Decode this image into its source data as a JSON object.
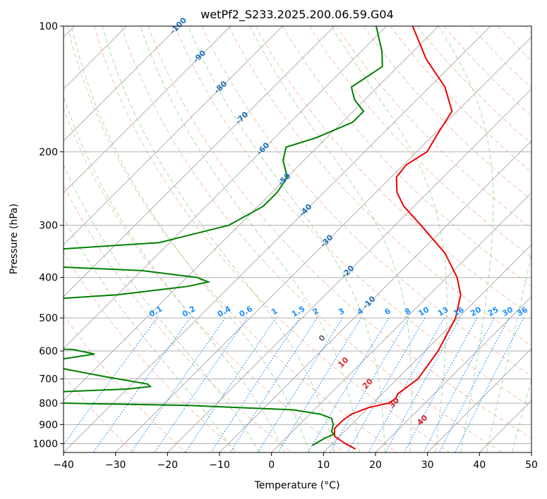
{
  "chart_data": {
    "type": "line",
    "subtype": "skew-t log-p diagram",
    "title": "wetPf2_S233.2025.200.06.59.G04",
    "xlabel": "Temperature (°C)",
    "ylabel": "Pressure (hPa)",
    "xlim": [
      -40,
      50
    ],
    "ylim": [
      1050,
      100
    ],
    "y_scale": "log",
    "x_ticks": [
      -40,
      -30,
      -20,
      -10,
      0,
      10,
      20,
      30,
      40,
      50
    ],
    "y_ticks": [
      100,
      200,
      300,
      400,
      500,
      600,
      700,
      800,
      900,
      1000
    ],
    "grid": true,
    "series": [
      {
        "color": "#ee0000",
        "points": [
          {
            "p": 1030,
            "t": 15.5
          },
          {
            "p": 1000,
            "t": 12.5
          },
          {
            "p": 960,
            "t": 9.0
          },
          {
            "p": 920,
            "t": 7.5
          },
          {
            "p": 880,
            "t": 7.5
          },
          {
            "p": 850,
            "t": 8.0
          },
          {
            "p": 820,
            "t": 10.0
          },
          {
            "p": 800,
            "t": 13.0
          },
          {
            "p": 780,
            "t": 13.5
          },
          {
            "p": 760,
            "t": 13.0
          },
          {
            "p": 700,
            "t": 14.0
          },
          {
            "p": 600,
            "t": 12.5
          },
          {
            "p": 500,
            "t": 9.5
          },
          {
            "p": 440,
            "t": 6.0
          },
          {
            "p": 400,
            "t": 2.0
          },
          {
            "p": 350,
            "t": -5.0
          },
          {
            "p": 300,
            "t": -15.0
          },
          {
            "p": 270,
            "t": -22.0
          },
          {
            "p": 250,
            "t": -26.0
          },
          {
            "p": 230,
            "t": -29.0
          },
          {
            "p": 215,
            "t": -29.5
          },
          {
            "p": 200,
            "t": -28.0
          },
          {
            "p": 180,
            "t": -29.5
          },
          {
            "p": 160,
            "t": -31.0
          },
          {
            "p": 140,
            "t": -37.0
          },
          {
            "p": 120,
            "t": -46.0
          },
          {
            "p": 100,
            "t": -55.0
          }
        ]
      },
      {
        "color": "#008000",
        "points": [
          {
            "p": 1010,
            "t": 6.5
          },
          {
            "p": 970,
            "t": 7.5
          },
          {
            "p": 950,
            "t": 8.5
          },
          {
            "p": 935,
            "t": 7.5
          },
          {
            "p": 900,
            "t": 6.5
          },
          {
            "p": 870,
            "t": 5.0
          },
          {
            "p": 850,
            "t": 2.0
          },
          {
            "p": 830,
            "t": -4.0
          },
          {
            "p": 810,
            "t": -25.0
          },
          {
            "p": 796,
            "t": -60.0
          },
          {
            "p": 760,
            "t": -62.0
          },
          {
            "p": 740,
            "t": -40.0
          },
          {
            "p": 730,
            "t": -36.0
          },
          {
            "p": 720,
            "t": -37.0
          },
          {
            "p": 690,
            "t": -47.0
          },
          {
            "p": 650,
            "t": -60.0
          },
          {
            "p": 640,
            "t": -62.0
          },
          {
            "p": 620,
            "t": -56.0
          },
          {
            "p": 610,
            "t": -53.0
          },
          {
            "p": 595,
            "t": -58.0
          },
          {
            "p": 585,
            "t": -80.0
          },
          {
            "p": 460,
            "t": -82.0
          },
          {
            "p": 440,
            "t": -60.0
          },
          {
            "p": 420,
            "t": -48.0
          },
          {
            "p": 410,
            "t": -45.0
          },
          {
            "p": 400,
            "t": -48.0
          },
          {
            "p": 385,
            "t": -60.0
          },
          {
            "p": 375,
            "t": -82.0
          },
          {
            "p": 345,
            "t": -84.0
          },
          {
            "p": 330,
            "t": -62.0
          },
          {
            "p": 300,
            "t": -52.0
          },
          {
            "p": 270,
            "t": -49.0
          },
          {
            "p": 250,
            "t": -49.0
          },
          {
            "p": 230,
            "t": -50.0
          },
          {
            "p": 210,
            "t": -54.0
          },
          {
            "p": 195,
            "t": -56.0
          },
          {
            "p": 185,
            "t": -52.0
          },
          {
            "p": 170,
            "t": -48.0
          },
          {
            "p": 160,
            "t": -48.0
          },
          {
            "p": 150,
            "t": -52.0
          },
          {
            "p": 140,
            "t": -55.0
          },
          {
            "p": 125,
            "t": -53.0
          },
          {
            "p": 115,
            "t": -56.0
          },
          {
            "p": 100,
            "t": -62.0
          }
        ]
      }
    ],
    "isotherm_labels": [
      "-100",
      "-90",
      "-80",
      "-70",
      "-60",
      "-50",
      "-40",
      "-30",
      "-20",
      "-10"
    ],
    "mixing_ratio_labels": [
      "0.1",
      "0.2",
      "0.4",
      "0.6",
      "1",
      "1.5",
      "2",
      "3",
      "4",
      "6",
      "8",
      "10",
      "13",
      "16",
      "20",
      "25",
      "30",
      "36"
    ],
    "moist_adiabat_labels": [
      "0",
      "10",
      "20",
      "30",
      "40"
    ],
    "colors": {
      "isotherm_label": "#1f6fb4",
      "mixing_ratio": "#1e90ff",
      "mixing_label": "#1e90ff",
      "moist_adiabat_label_zero": "#666666",
      "moist_adiabat_label": "#d62728",
      "dry_adiabat": "#f4a582",
      "moist_adiabat": "#66bb66",
      "grid": "#b0b0b0",
      "temperature": "#ee0000",
      "dewpoint": "#008000"
    }
  }
}
